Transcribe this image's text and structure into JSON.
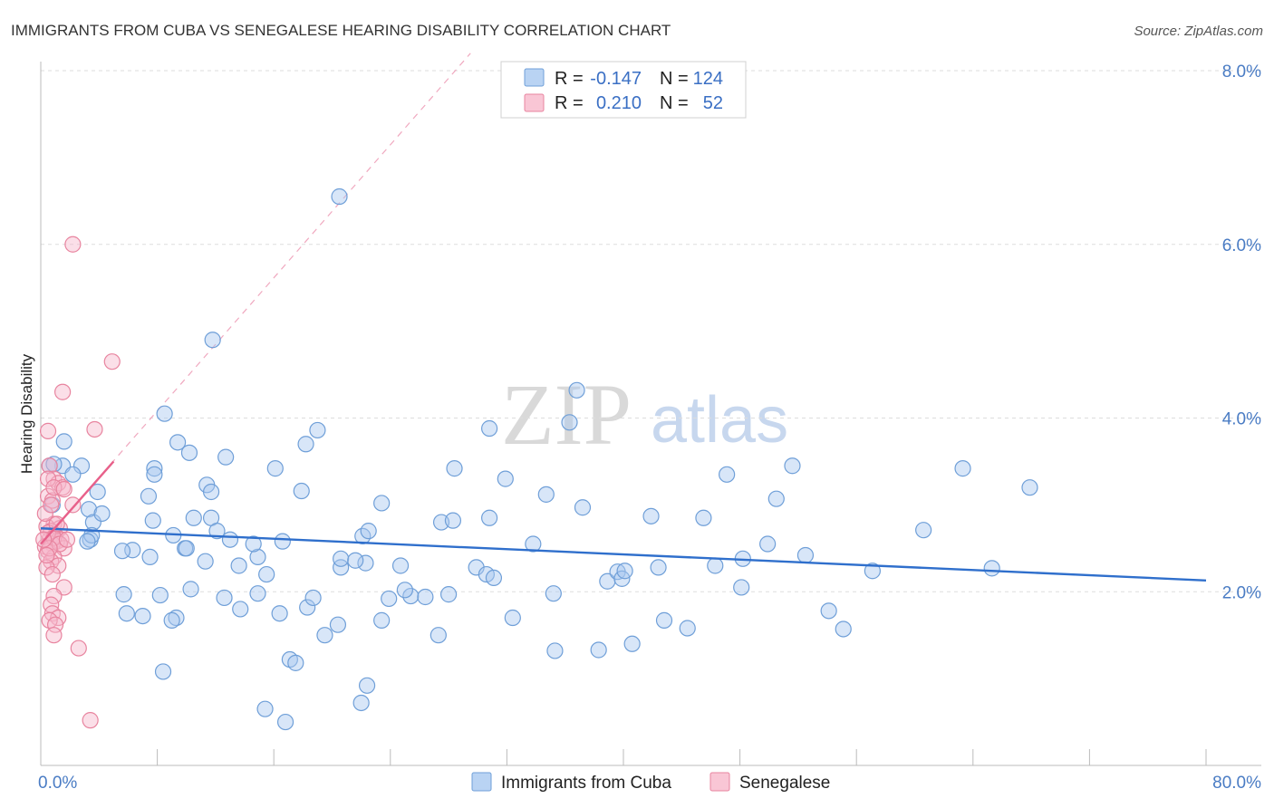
{
  "chart_data": {
    "type": "scatter",
    "title": "IMMIGRANTS FROM CUBA VS SENEGALESE HEARING DISABILITY CORRELATION CHART",
    "source": "Source: ZipAtlas.com",
    "ylabel": "Hearing Disability",
    "xlabel": "",
    "xlim": [
      0,
      80
    ],
    "ylim": [
      0,
      8
    ],
    "y_ticks": [
      {
        "value": 2,
        "label": "2.0%"
      },
      {
        "value": 4,
        "label": "4.0%"
      },
      {
        "value": 6,
        "label": "6.0%"
      },
      {
        "value": 8,
        "label": "8.0%"
      }
    ],
    "x_tick_labels": {
      "min": "0.0%",
      "max": "80.0%"
    },
    "watermark": {
      "zip": "ZIP",
      "atlas": "atlas"
    },
    "legend": {
      "position": "top-center",
      "rows": [
        {
          "r_label": "R =",
          "r_value": "-0.147",
          "n_label": "N =",
          "n_value": "124"
        },
        {
          "r_label": "R =",
          "r_value": "0.210",
          "n_label": "N =",
          "n_value": "52"
        }
      ]
    },
    "series": [
      {
        "name": "Immigrants from Cuba",
        "color": "#a8c8f0",
        "stroke": "#6f9fd8",
        "trend": {
          "x0": 0,
          "y0": 2.73,
          "x1": 80,
          "y1": 2.13,
          "color": "#2f6fcc"
        },
        "points": [
          [
            1.6,
            3.73
          ],
          [
            1.5,
            3.45
          ],
          [
            2.8,
            3.45
          ],
          [
            2.2,
            3.35
          ],
          [
            3.9,
            3.15
          ],
          [
            3.3,
            2.95
          ],
          [
            3.6,
            2.8
          ],
          [
            4.2,
            2.9
          ],
          [
            3.4,
            2.6
          ],
          [
            3.5,
            2.65
          ],
          [
            3.2,
            2.58
          ],
          [
            0.6,
            3.45
          ],
          [
            0.9,
            3.47
          ],
          [
            0.8,
            3.0
          ],
          [
            8.5,
            4.05
          ],
          [
            9.4,
            3.72
          ],
          [
            10.2,
            3.6
          ],
          [
            7.8,
            3.42
          ],
          [
            7.8,
            3.35
          ],
          [
            7.4,
            3.1
          ],
          [
            11.4,
            3.23
          ],
          [
            11.7,
            3.15
          ],
          [
            12.7,
            3.55
          ],
          [
            7.7,
            2.82
          ],
          [
            9.1,
            2.65
          ],
          [
            10.5,
            2.85
          ],
          [
            11.7,
            2.85
          ],
          [
            12.1,
            2.7
          ],
          [
            6.3,
            2.48
          ],
          [
            7.5,
            2.4
          ],
          [
            9.9,
            2.5
          ],
          [
            11.3,
            2.35
          ],
          [
            13.0,
            2.6
          ],
          [
            13.6,
            2.3
          ],
          [
            14.9,
            2.4
          ],
          [
            15.5,
            2.2
          ],
          [
            16.6,
            2.58
          ],
          [
            5.7,
            1.97
          ],
          [
            5.9,
            1.75
          ],
          [
            7.0,
            1.72
          ],
          [
            10.3,
            2.03
          ],
          [
            10.0,
            2.5
          ],
          [
            9.3,
            1.7
          ],
          [
            13.7,
            1.8
          ],
          [
            14.9,
            1.98
          ],
          [
            16.4,
            1.75
          ],
          [
            17.1,
            1.22
          ],
          [
            17.5,
            1.18
          ],
          [
            18.3,
            1.82
          ],
          [
            18.7,
            1.93
          ],
          [
            19.5,
            1.5
          ],
          [
            20.4,
            1.62
          ],
          [
            8.4,
            1.08
          ],
          [
            15.4,
            0.65
          ],
          [
            16.8,
            0.5
          ],
          [
            22.0,
            0.72
          ],
          [
            11.8,
            4.9
          ],
          [
            18.2,
            3.7
          ],
          [
            19.0,
            3.86
          ],
          [
            17.9,
            3.16
          ],
          [
            16.1,
            3.42
          ],
          [
            20.6,
            2.28
          ],
          [
            22.3,
            2.33
          ],
          [
            22.1,
            2.64
          ],
          [
            22.5,
            2.7
          ],
          [
            23.4,
            3.02
          ],
          [
            24.7,
            2.3
          ],
          [
            23.9,
            1.92
          ],
          [
            23.4,
            1.67
          ],
          [
            22.4,
            0.92
          ],
          [
            20.5,
            6.55
          ],
          [
            20.6,
            2.38
          ],
          [
            21.6,
            2.36
          ],
          [
            25.4,
            1.95
          ],
          [
            26.4,
            1.94
          ],
          [
            27.3,
            1.5
          ],
          [
            28.4,
            3.42
          ],
          [
            27.5,
            2.8
          ],
          [
            28.3,
            2.82
          ],
          [
            29.9,
            2.28
          ],
          [
            30.6,
            2.2
          ],
          [
            31.1,
            2.16
          ],
          [
            30.8,
            3.88
          ],
          [
            30.8,
            2.85
          ],
          [
            31.9,
            3.3
          ],
          [
            32.4,
            1.7
          ],
          [
            33.8,
            2.55
          ],
          [
            34.7,
            3.12
          ],
          [
            35.2,
            1.98
          ],
          [
            35.3,
            1.32
          ],
          [
            36.3,
            3.95
          ],
          [
            36.8,
            4.32
          ],
          [
            37.2,
            2.97
          ],
          [
            38.3,
            1.33
          ],
          [
            38.9,
            2.12
          ],
          [
            39.6,
            2.23
          ],
          [
            39.9,
            2.15
          ],
          [
            40.1,
            2.24
          ],
          [
            40.6,
            1.4
          ],
          [
            41.9,
            2.87
          ],
          [
            42.4,
            2.28
          ],
          [
            42.8,
            1.67
          ],
          [
            44.4,
            1.58
          ],
          [
            45.5,
            2.85
          ],
          [
            46.3,
            2.3
          ],
          [
            47.1,
            3.35
          ],
          [
            48.1,
            2.05
          ],
          [
            48.2,
            2.38
          ],
          [
            49.9,
            2.55
          ],
          [
            50.5,
            3.07
          ],
          [
            51.6,
            3.45
          ],
          [
            52.5,
            2.42
          ],
          [
            54.1,
            1.78
          ],
          [
            55.1,
            1.57
          ],
          [
            57.1,
            2.24
          ],
          [
            60.6,
            2.71
          ],
          [
            63.3,
            3.42
          ],
          [
            65.3,
            2.27
          ],
          [
            67.9,
            3.2
          ],
          [
            28.0,
            1.97
          ],
          [
            25.0,
            2.02
          ],
          [
            14.6,
            2.55
          ],
          [
            12.6,
            1.93
          ],
          [
            9.0,
            1.67
          ],
          [
            8.2,
            1.96
          ],
          [
            5.6,
            2.47
          ]
        ]
      },
      {
        "name": "Senegalese",
        "color": "#f7b8cb",
        "stroke": "#e8849f",
        "trend": {
          "x0": 0,
          "y0": 2.55,
          "x1": 5.0,
          "y1": 3.5,
          "color": "#e8608a"
        },
        "trend_extended": {
          "x0": 0,
          "y0": 2.55,
          "x1": 29.5,
          "y1": 8.2,
          "color": "#f0a8bf"
        },
        "points": [
          [
            2.2,
            6.0
          ],
          [
            4.9,
            4.65
          ],
          [
            1.5,
            4.3
          ],
          [
            3.7,
            3.87
          ],
          [
            0.5,
            3.85
          ],
          [
            0.6,
            3.45
          ],
          [
            0.9,
            3.3
          ],
          [
            1.2,
            3.25
          ],
          [
            1.5,
            3.2
          ],
          [
            0.5,
            3.1
          ],
          [
            0.8,
            3.05
          ],
          [
            2.2,
            3.0
          ],
          [
            0.9,
            2.78
          ],
          [
            0.4,
            2.75
          ],
          [
            1.3,
            2.73
          ],
          [
            0.7,
            2.7
          ],
          [
            1.0,
            2.65
          ],
          [
            0.6,
            2.6
          ],
          [
            1.4,
            2.6
          ],
          [
            1.1,
            2.58
          ],
          [
            0.8,
            2.55
          ],
          [
            0.3,
            2.52
          ],
          [
            1.6,
            2.5
          ],
          [
            0.5,
            2.47
          ],
          [
            0.9,
            2.4
          ],
          [
            0.7,
            2.35
          ],
          [
            1.2,
            2.3
          ],
          [
            0.4,
            2.28
          ],
          [
            0.8,
            2.2
          ],
          [
            1.6,
            2.05
          ],
          [
            0.9,
            1.95
          ],
          [
            0.7,
            1.85
          ],
          [
            0.8,
            1.75
          ],
          [
            1.2,
            1.7
          ],
          [
            0.6,
            1.67
          ],
          [
            1.0,
            1.62
          ],
          [
            0.9,
            1.5
          ],
          [
            2.6,
            1.35
          ],
          [
            3.4,
            0.52
          ],
          [
            0.5,
            3.3
          ],
          [
            0.9,
            3.2
          ],
          [
            1.6,
            3.18
          ],
          [
            0.3,
            2.9
          ],
          [
            0.5,
            2.68
          ],
          [
            0.9,
            2.62
          ],
          [
            1.3,
            2.55
          ],
          [
            0.6,
            2.5
          ],
          [
            0.4,
            2.42
          ],
          [
            1.1,
            2.78
          ],
          [
            0.7,
            3.0
          ],
          [
            0.2,
            2.6
          ],
          [
            1.8,
            2.6
          ]
        ]
      }
    ]
  }
}
